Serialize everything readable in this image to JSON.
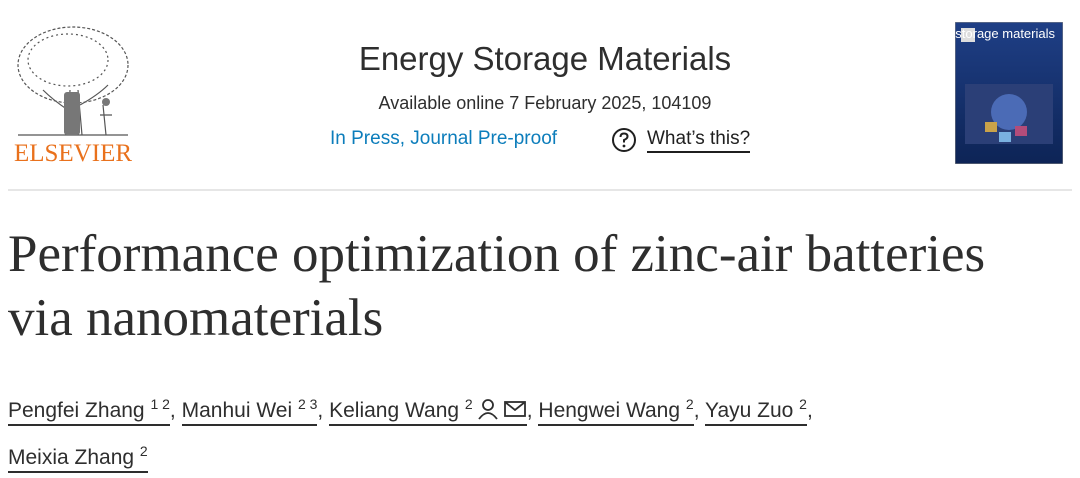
{
  "header": {
    "publisher": "ELSEVIER",
    "journal": "Energy Storage Materials",
    "availability": "Available online 7 February 2025, 104109",
    "status": "In Press, Journal Pre-proof",
    "help": "What’s this?",
    "cover_title": "energy storage materials"
  },
  "article": {
    "title": "Performance optimization of zinc-air batteries via nanomaterials",
    "separator": ",",
    "authors": [
      {
        "name": "Pengfei Zhang",
        "affiliations": "1 2"
      },
      {
        "name": "Manhui Wei",
        "affiliations": "2 3"
      },
      {
        "name": "Keliang Wang",
        "affiliations": "2"
      },
      {
        "name": "Hengwei Wang",
        "affiliations": "2"
      },
      {
        "name": "Yayu Zuo",
        "affiliations": "2"
      },
      {
        "name": "Meixia Zhang",
        "affiliations": "2"
      }
    ]
  }
}
